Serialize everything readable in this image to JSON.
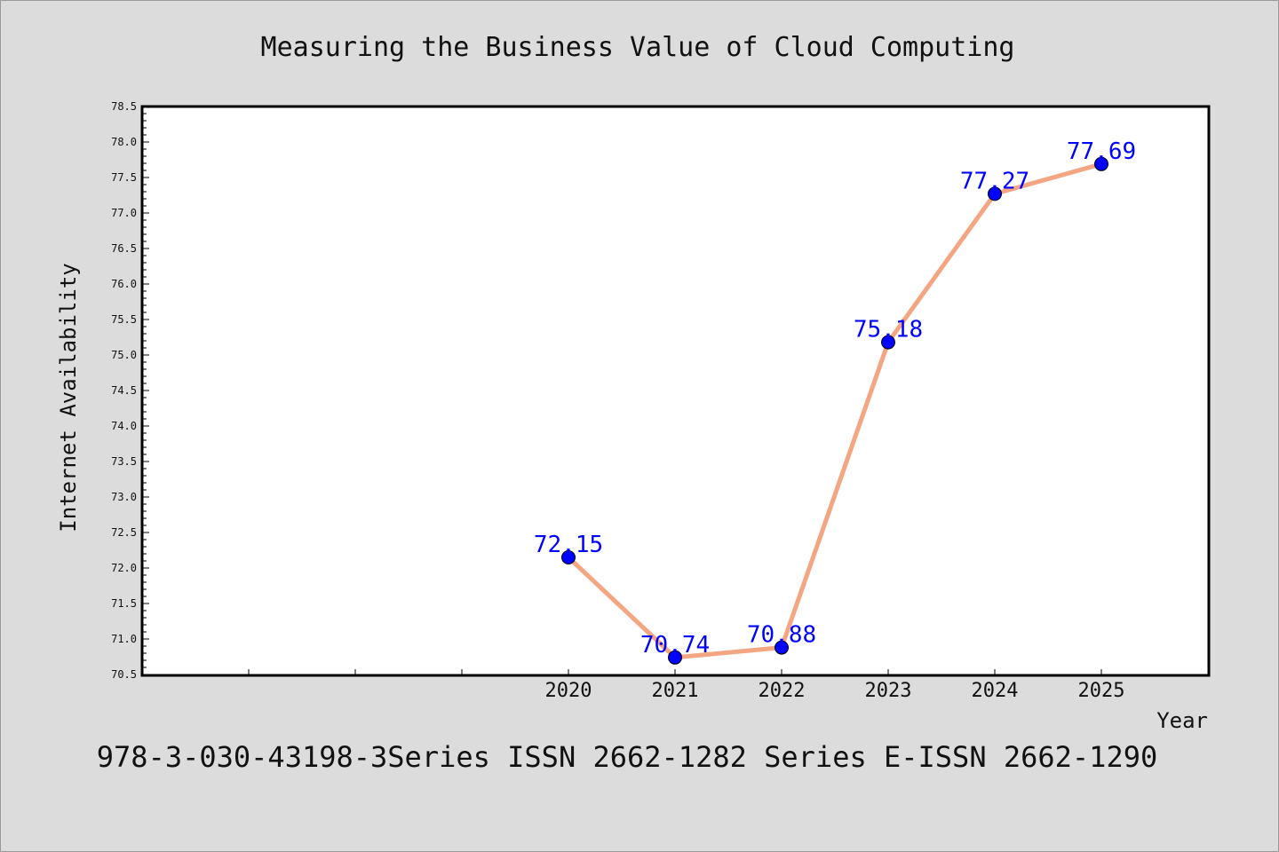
{
  "chart_data": {
    "type": "line",
    "title": "Measuring the Business Value of Cloud Computing",
    "xlabel": "Year",
    "ylabel": "Internet Availability",
    "x": [
      2020,
      2021,
      2022,
      2023,
      2024,
      2025
    ],
    "x_tick_labels": [
      "2020",
      "2021",
      "2022",
      "2023",
      "2024",
      "2025"
    ],
    "y_values": [
      72.15,
      70.74,
      70.88,
      75.18,
      77.27,
      77.69
    ],
    "data_labels": [
      "72.15",
      "70.74",
      "70.88",
      "75.18",
      "77.27",
      "77.69"
    ],
    "xlim": [
      2016,
      2026
    ],
    "ylim": [
      70.5,
      78.5
    ],
    "y_ticks": [
      "70.5",
      "71.0",
      "71.5",
      "72.0",
      "72.5",
      "73.0",
      "73.5",
      "74.0",
      "74.5",
      "75.0",
      "75.5",
      "76.0",
      "76.5",
      "77.0",
      "77.5",
      "78.0",
      "78.5"
    ],
    "grid": false,
    "line_color": "#f4a582",
    "marker_color": "#0000ff",
    "label_color": "#0000ff"
  },
  "footer": {
    "text": "978-3-030-43198-3Series ISSN 2662-1282 Series E-ISSN 2662-1290"
  }
}
